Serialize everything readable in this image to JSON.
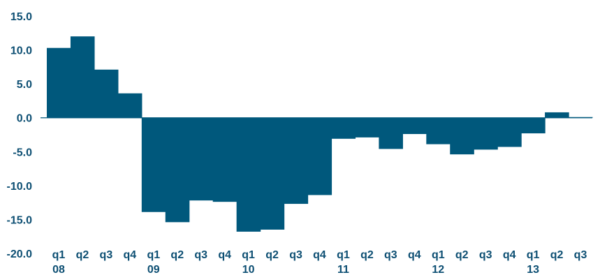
{
  "chart_data": {
    "type": "bar",
    "categories": [
      "q1",
      "q2",
      "q3",
      "q4",
      "q1",
      "q2",
      "q3",
      "q4",
      "q1",
      "q2",
      "q3",
      "q4",
      "q1",
      "q2",
      "q3",
      "q4",
      "q1",
      "q2",
      "q3",
      "q4",
      "q1",
      "q2",
      "q3"
    ],
    "year_labels": [
      {
        "index": 0,
        "label": "08"
      },
      {
        "index": 4,
        "label": "09"
      },
      {
        "index": 8,
        "label": "10"
      },
      {
        "index": 12,
        "label": "11"
      },
      {
        "index": 16,
        "label": "12"
      },
      {
        "index": 20,
        "label": "13"
      }
    ],
    "values": [
      10.3,
      12.0,
      7.1,
      3.6,
      -13.9,
      -15.4,
      -12.2,
      -12.4,
      -16.8,
      -16.5,
      -12.7,
      -11.4,
      -3.1,
      -2.9,
      -4.6,
      -2.4,
      -3.9,
      -5.4,
      -4.7,
      -4.3,
      -2.3,
      0.8,
      0.1
    ],
    "ylim": [
      -20,
      15
    ],
    "yticks": [
      "15.0",
      "10.0",
      "5.0",
      "0.0",
      "-5.0",
      "-10.0",
      "-15.0",
      "-20.0"
    ],
    "ytick_values": [
      15,
      10,
      5,
      0,
      -5,
      -10,
      -15,
      -20
    ],
    "title": "",
    "xlabel": "",
    "ylabel": "",
    "grid": false,
    "bar_color": "#00587c",
    "text_color": "#0d4f73"
  }
}
